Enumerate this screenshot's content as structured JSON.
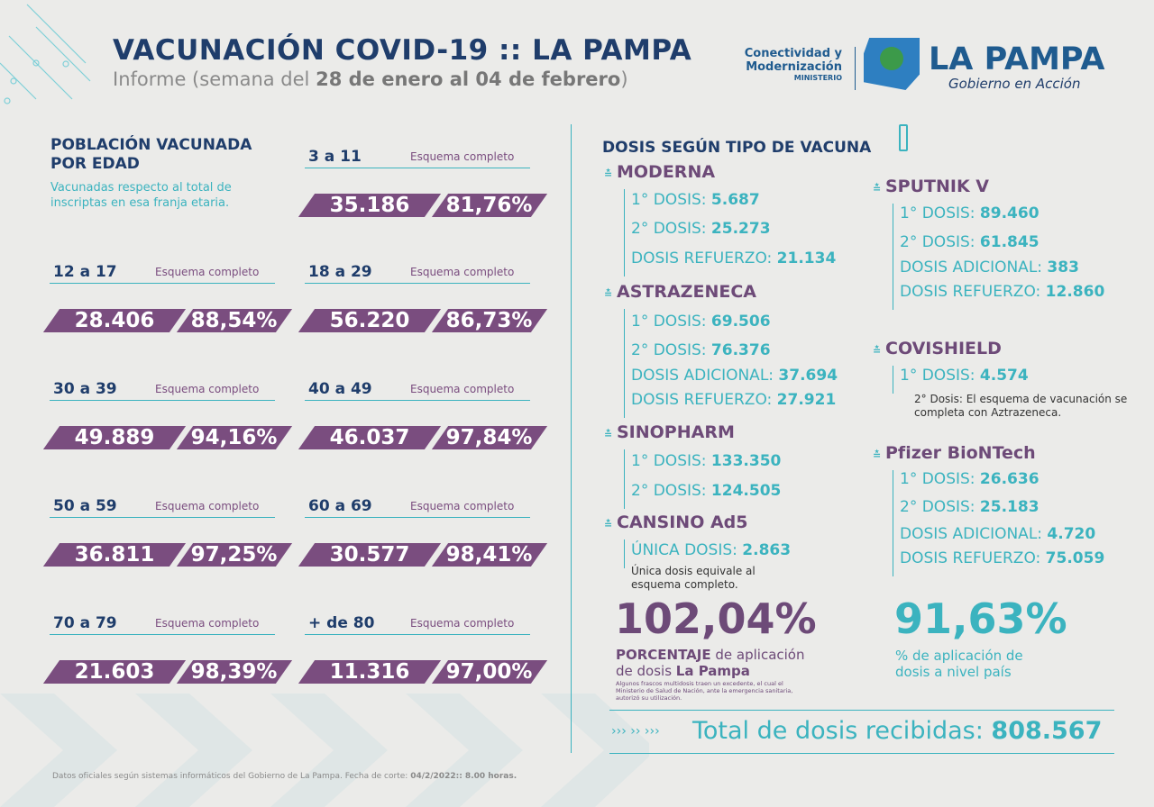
{
  "header": {
    "title": "VACUNACIÓN COVID-19 :: LA PAMPA",
    "subtitle_prefix": "Informe (semana del",
    "subtitle_dates": "28 de enero al 04 de febrero",
    "subtitle_suffix": ")"
  },
  "logo": {
    "ministry_line1": "Conectividad y",
    "ministry_line2": "Modernización",
    "ministry_label": "MINISTERIO",
    "province": "LA PAMPA",
    "slogan": "Gobierno en Acción"
  },
  "age_section": {
    "title_line1": "POBLACIÓN VACUNADA",
    "title_line2": "POR EDAD",
    "note": "Vacunadas respecto al total de inscriptas en esa franja etaria.",
    "groups": [
      {
        "range": "3 a 11",
        "label": "Esquema completo",
        "count": "35.186",
        "percent": "81,76%"
      },
      {
        "range": "12 a 17",
        "label": "Esquema completo",
        "count": "28.406",
        "percent": "88,54%"
      },
      {
        "range": "18 a 29",
        "label": "Esquema completo",
        "count": "56.220",
        "percent": "86,73%"
      },
      {
        "range": "30 a 39",
        "label": "Esquema completo",
        "count": "49.889",
        "percent": "94,16%"
      },
      {
        "range": "40 a 49",
        "label": "Esquema completo",
        "count": "46.037",
        "percent": "97,84%"
      },
      {
        "range": "50 a 59",
        "label": "Esquema completo",
        "count": "36.811",
        "percent": "97,25%"
      },
      {
        "range": "60 a 69",
        "label": "Esquema completo",
        "count": "30.577",
        "percent": "98,41%"
      },
      {
        "range": "70 a 79",
        "label": "Esquema completo",
        "count": "21.603",
        "percent": "98,39%"
      },
      {
        "range": "+ de 80",
        "label": "Esquema completo",
        "count": "11.316",
        "percent": "97,00%"
      }
    ]
  },
  "vaccine_section": {
    "title": "DOSIS SEGÚN TIPO DE VACUNA",
    "vaccines": [
      {
        "name": "MODERNA",
        "doses": [
          {
            "label": "1° DOSIS:",
            "value": "5.687"
          },
          {
            "label": "2° DOSIS:",
            "value": "25.273"
          },
          {
            "label": "DOSIS REFUERZO:",
            "value": "21.134"
          }
        ]
      },
      {
        "name": "ASTRAZENECA",
        "doses": [
          {
            "label": "1° DOSIS:",
            "value": "69.506"
          },
          {
            "label": "2° DOSIS:",
            "value": "76.376"
          },
          {
            "label": "DOSIS ADICIONAL:",
            "value": "37.694"
          },
          {
            "label": "DOSIS REFUERZO:",
            "value": "27.921"
          }
        ]
      },
      {
        "name": "SINOPHARM",
        "doses": [
          {
            "label": "1° DOSIS:",
            "value": "133.350"
          },
          {
            "label": "2° DOSIS:",
            "value": "124.505"
          }
        ]
      },
      {
        "name": "CANSINO Ad5",
        "doses": [
          {
            "label": "ÚNICA DOSIS:",
            "value": "2.863"
          }
        ],
        "note": "Única dosis equivale al esquema completo."
      },
      {
        "name": "SPUTNIK V",
        "doses": [
          {
            "label": "1° DOSIS:",
            "value": "89.460"
          },
          {
            "label": "2° DOSIS:",
            "value": "61.845"
          },
          {
            "label": "DOSIS ADICIONAL:",
            "value": "383"
          },
          {
            "label": "DOSIS REFUERZO:",
            "value": "12.860"
          }
        ]
      },
      {
        "name": "COVISHIELD",
        "doses": [
          {
            "label": "1° DOSIS:",
            "value": "4.574"
          }
        ],
        "note": "2° Dosis: El esquema de vacunación se completa con Aztrazeneca."
      },
      {
        "name": "Pfizer BioNTech",
        "doses": [
          {
            "label": "1° DOSIS:",
            "value": "26.636"
          },
          {
            "label": "2° DOSIS:",
            "value": "25.183"
          },
          {
            "label": "DOSIS ADICIONAL:",
            "value": "4.720"
          },
          {
            "label": "DOSIS REFUERZO:",
            "value": "75.059"
          }
        ]
      }
    ]
  },
  "stats": {
    "local_percent": "102,04%",
    "local_label_bold": "PORCENTAJE",
    "local_label_rest": "de aplicación",
    "local_label_line2": "de dosis",
    "local_label_place": "La Pampa",
    "local_footnote": "Algunos frascos multidosis traen un excedente, el cual el Ministerio de Salud de Nación, ante la emergencia sanitaria, autorizó su utilización.",
    "national_percent": "91,63%",
    "national_label": "% de aplicación de dosis a nivel país"
  },
  "total": {
    "label": "Total de dosis recibidas:",
    "value": "808.567"
  },
  "footer": {
    "source": "Datos oficiales según sistemas informáticos del Gobierno de La Pampa. Fecha de corte:",
    "cutoff": "04/2/2022:: 8.00 horas."
  }
}
